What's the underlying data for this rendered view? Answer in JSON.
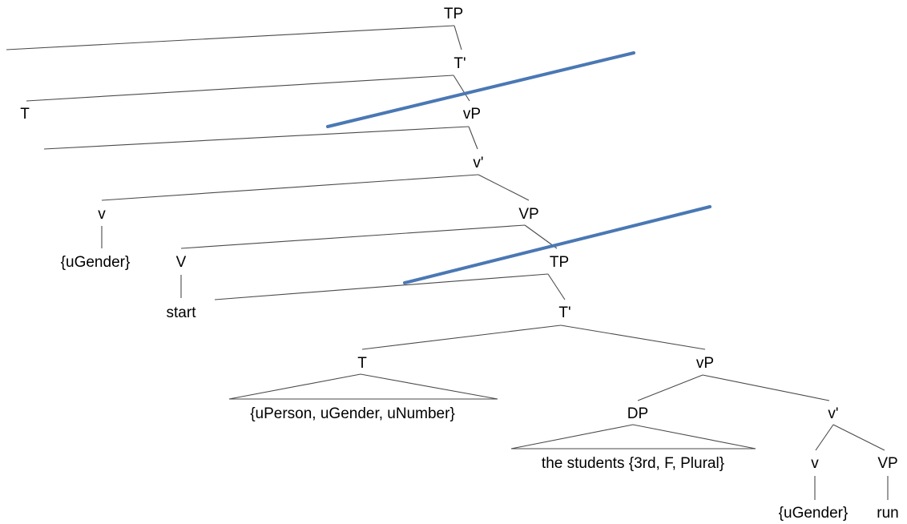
{
  "diagram": {
    "labels": {
      "tp_root": "TP",
      "tbar_top": "T'",
      "t_top": "T",
      "vp_upper": "vP",
      "vbar_upper": "v'",
      "v_upper": "v",
      "v_upper_feat": "{uGender}",
      "VP_upper": "VP",
      "V_upper": "V",
      "start": "start",
      "tp_embedded": "TP",
      "tbar_embedded": "T'",
      "t_embedded": "T",
      "t_embedded_feats": "{uPerson, uGender, uNumber}",
      "vp_lower": "vP",
      "dp": "DP",
      "dp_content": "the students {3rd, F, Plural}",
      "vbar_lower": "v'",
      "v_lower": "v",
      "v_lower_feat": "{uGender}",
      "VP_lower": "VP",
      "run": "run"
    },
    "colors": {
      "text": "#000000",
      "branch": "#4a4a4a",
      "strike": "#4a78b4"
    }
  }
}
